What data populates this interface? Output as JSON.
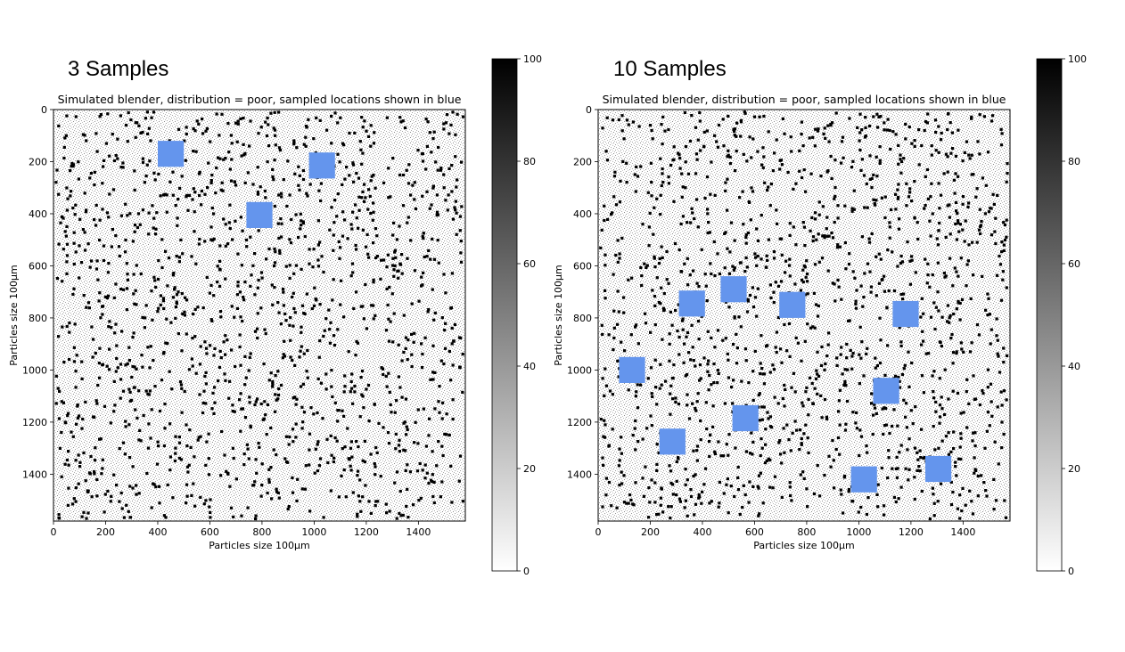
{
  "panels": [
    {
      "heading": "3 Samples"
    },
    {
      "heading": "10 Samples"
    }
  ],
  "chart_data": [
    {
      "type": "heatmap",
      "title": "Simulated blender, distribution = poor, sampled locations shown in blue",
      "xlabel": "Particles size 100µm",
      "ylabel": "Particles size 100µm",
      "xlim": [
        0,
        1580
      ],
      "ylim": [
        1580,
        0
      ],
      "xticks": [
        0,
        200,
        400,
        600,
        800,
        1000,
        1200,
        1400
      ],
      "yticks": [
        0,
        200,
        400,
        600,
        800,
        1000,
        1200,
        1400
      ],
      "colorbar": {
        "range": [
          0,
          100
        ],
        "ticks": [
          0,
          20,
          40,
          60,
          80,
          100
        ],
        "colormap": "gray_r"
      },
      "sample_color": "#6495ed",
      "sample_size": 100,
      "samples": [
        {
          "x": 450,
          "y": 170
        },
        {
          "x": 1030,
          "y": 215
        },
        {
          "x": 790,
          "y": 405
        }
      ]
    },
    {
      "type": "heatmap",
      "title": "Simulated blender, distribution = poor, sampled locations shown in blue",
      "xlabel": "Particles size 100µm",
      "ylabel": "Particles size 100µm",
      "xlim": [
        0,
        1580
      ],
      "ylim": [
        1580,
        0
      ],
      "xticks": [
        0,
        200,
        400,
        600,
        800,
        1000,
        1200,
        1400
      ],
      "yticks": [
        0,
        200,
        400,
        600,
        800,
        1000,
        1200,
        1400
      ],
      "colorbar": {
        "range": [
          0,
          100
        ],
        "ticks": [
          0,
          20,
          40,
          60,
          80,
          100
        ],
        "colormap": "gray_r"
      },
      "sample_color": "#6495ed",
      "sample_size": 100,
      "samples": [
        {
          "x": 360,
          "y": 745
        },
        {
          "x": 520,
          "y": 690
        },
        {
          "x": 745,
          "y": 750
        },
        {
          "x": 1180,
          "y": 785
        },
        {
          "x": 130,
          "y": 1000
        },
        {
          "x": 1105,
          "y": 1080
        },
        {
          "x": 565,
          "y": 1185
        },
        {
          "x": 285,
          "y": 1275
        },
        {
          "x": 1020,
          "y": 1420
        },
        {
          "x": 1305,
          "y": 1380
        }
      ]
    }
  ]
}
